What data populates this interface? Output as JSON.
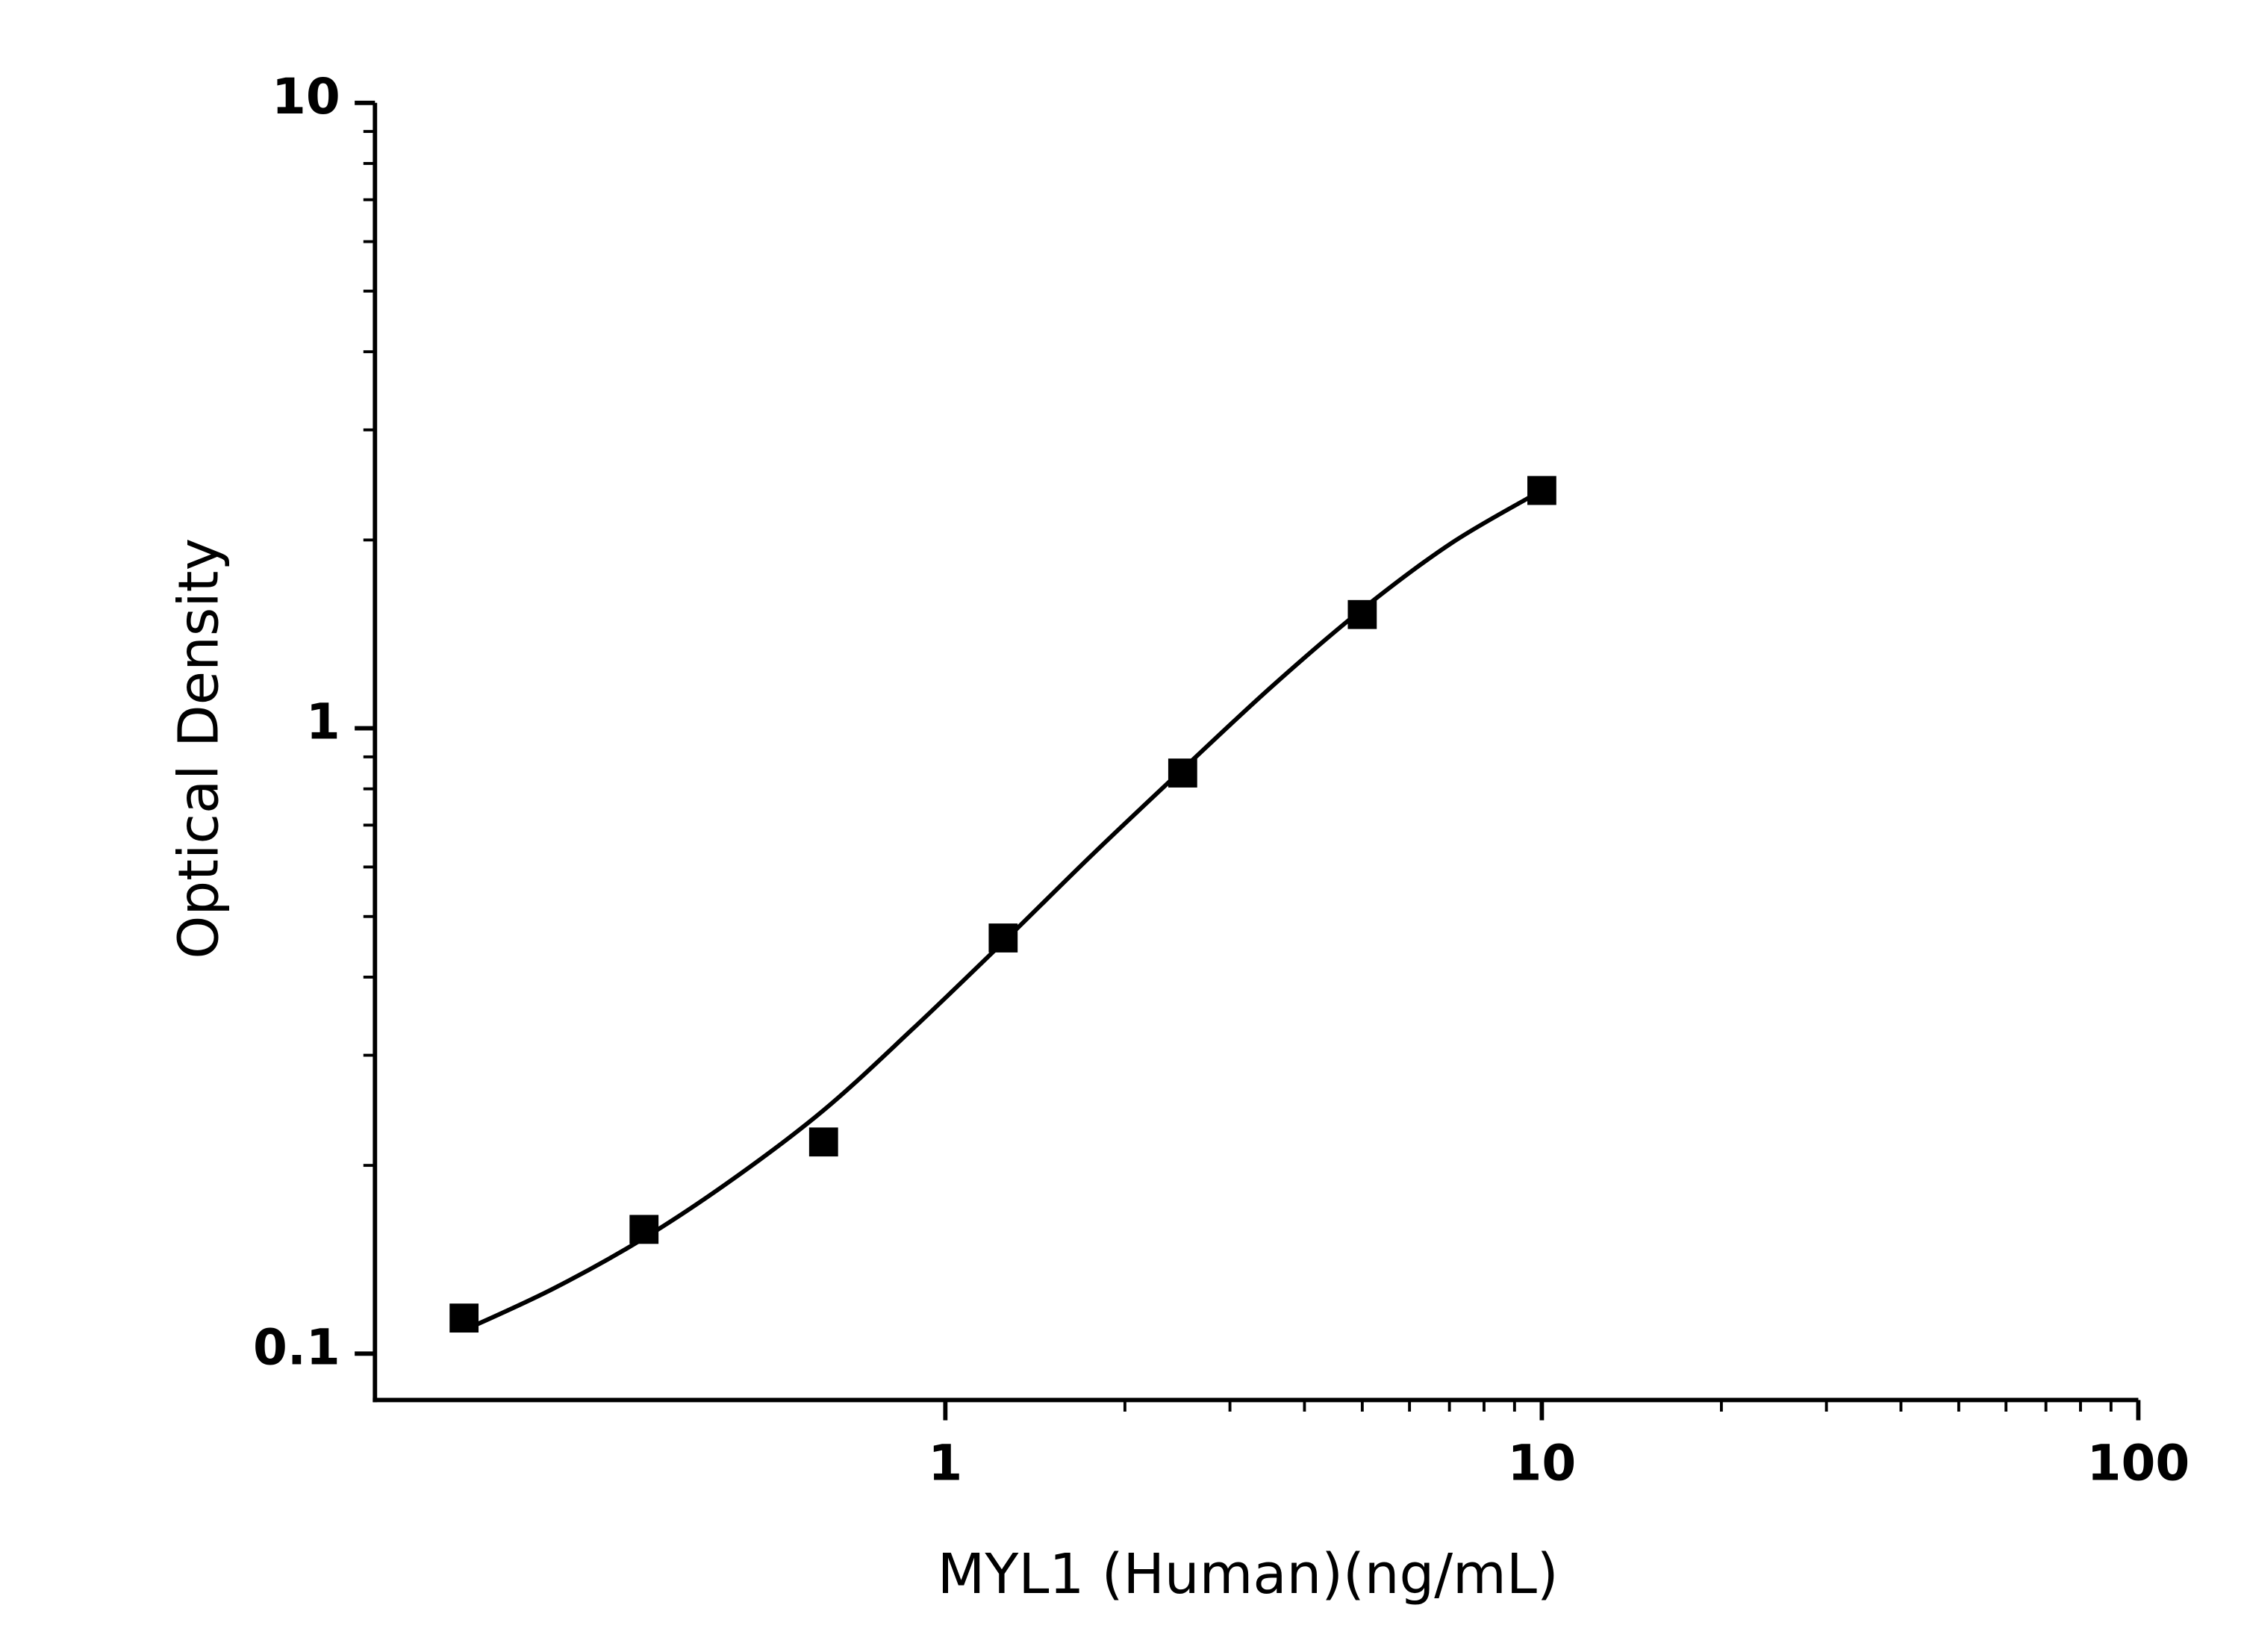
{
  "chart_data": {
    "type": "scatter",
    "x_label": "MYL1 (Human)(ng/mL)",
    "y_label": "Optical Density",
    "log_x": true,
    "log_y": true,
    "xlim": [
      0.1106,
      100
    ],
    "ylim": [
      0.0843,
      10
    ],
    "xticks": [
      1,
      10,
      100
    ],
    "yticks": [
      0.1,
      1,
      10
    ],
    "xminor_ticks": [
      2,
      3,
      4,
      5,
      6,
      7,
      8,
      9,
      20,
      30,
      40,
      50,
      60,
      70,
      80,
      90
    ],
    "yminor_ticks": [
      0.2,
      0.3,
      0.4,
      0.5,
      0.6,
      0.7,
      0.8,
      0.9,
      2,
      3,
      4,
      5,
      6,
      7,
      8,
      9
    ],
    "series": [
      {
        "kind": "points",
        "color": "#000000",
        "x": [
          0.156,
          0.3125,
          0.625,
          1.25,
          2.5,
          5,
          10
        ],
        "values": [
          0.114,
          0.158,
          0.218,
          0.462,
          0.848,
          1.52,
          2.4
        ]
      },
      {
        "kind": "fit",
        "color": "#000000",
        "x": [
          0.156,
          0.22,
          0.3125,
          0.44,
          0.625,
          0.88,
          1.25,
          1.77,
          2.5,
          3.54,
          5,
          7.07,
          10
        ],
        "values": [
          0.109,
          0.127,
          0.153,
          0.19,
          0.245,
          0.33,
          0.455,
          0.63,
          0.86,
          1.17,
          1.55,
          1.98,
          2.4
        ]
      }
    ]
  }
}
